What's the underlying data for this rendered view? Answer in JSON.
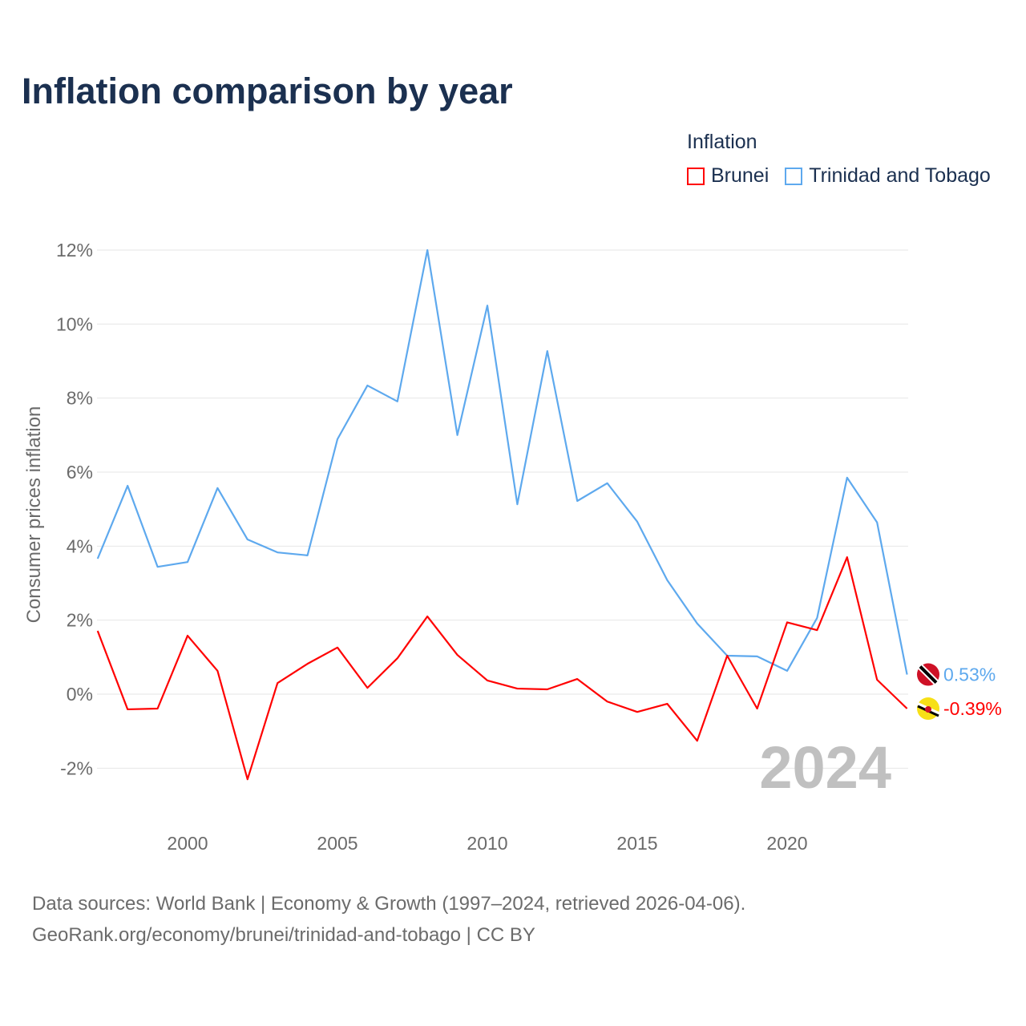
{
  "title": "Inflation comparison by year",
  "legend": {
    "title": "Inflation",
    "items": [
      {
        "name": "Brunei",
        "color": "#ff0000"
      },
      {
        "name": "Trinidad and Tobago",
        "color": "#5ea9ee"
      }
    ]
  },
  "year_watermark": "2024",
  "source": {
    "line1": "Data sources: World Bank | Economy & Growth (1997–2024, retrieved 2026-04-06).",
    "line2": "GeoRank.org/economy/brunei/trinidad-and-tobago | CC BY"
  },
  "chart_data": {
    "type": "line",
    "title": "Inflation comparison by year",
    "xlabel": "",
    "ylabel": "Consumer prices inflation",
    "xlim": [
      1997,
      2024
    ],
    "ylim": [
      -2,
      12
    ],
    "xticks": [
      2000,
      2005,
      2010,
      2015,
      2020
    ],
    "yticks": [
      -2,
      0,
      2,
      4,
      6,
      8,
      10,
      12
    ],
    "ytick_labels": [
      "-2%",
      "0%",
      "2%",
      "4%",
      "6%",
      "8%",
      "10%",
      "12%"
    ],
    "grid": true,
    "legend_position": "top-right",
    "x": [
      1997,
      1998,
      1999,
      2000,
      2001,
      2002,
      2003,
      2004,
      2005,
      2006,
      2007,
      2008,
      2009,
      2010,
      2011,
      2012,
      2013,
      2014,
      2015,
      2016,
      2017,
      2018,
      2019,
      2020,
      2021,
      2022,
      2023,
      2024
    ],
    "series": [
      {
        "name": "Brunei",
        "color": "#ff0000",
        "end_label": "-0.39%",
        "values": [
          1.71,
          -0.41,
          -0.39,
          1.58,
          0.63,
          -2.3,
          0.3,
          0.82,
          1.26,
          0.17,
          0.97,
          2.1,
          1.06,
          0.37,
          0.15,
          0.13,
          0.41,
          -0.2,
          -0.48,
          -0.26,
          -1.26,
          1.04,
          -0.39,
          1.94,
          1.73,
          3.7,
          0.39,
          -0.39
        ]
      },
      {
        "name": "Trinidad and Tobago",
        "color": "#5ea9ee",
        "end_label": "0.53%",
        "values": [
          3.66,
          5.63,
          3.44,
          3.57,
          5.57,
          4.18,
          3.83,
          3.75,
          6.89,
          8.34,
          7.91,
          12.0,
          7.0,
          10.5,
          5.13,
          9.27,
          5.22,
          5.7,
          4.66,
          3.08,
          1.91,
          1.04,
          1.02,
          0.63,
          2.06,
          5.85,
          4.64,
          0.53
        ]
      }
    ]
  }
}
